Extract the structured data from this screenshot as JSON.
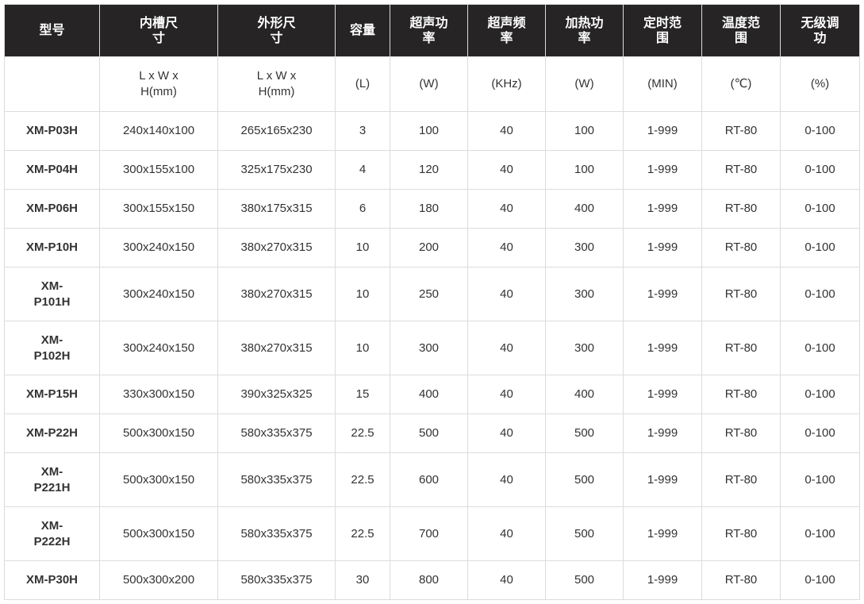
{
  "headers": [
    "型号",
    "内槽尺寸",
    "外形尺寸",
    "容量",
    "超声功率",
    "超声频率",
    "加热功率",
    "定时范围",
    "温度范围",
    "无级调功"
  ],
  "units": [
    "",
    "L x W x H(mm)",
    "L x W x H(mm)",
    "(L)",
    "(W)",
    "(KHz)",
    "(W)",
    "(MIN)",
    "(℃)",
    "(%)"
  ],
  "rows": [
    [
      "XM-P03H",
      "240x140x100",
      "265x165x230",
      "3",
      "100",
      "40",
      "100",
      "1-999",
      "RT-80",
      "0-100"
    ],
    [
      "XM-P04H",
      "300x155x100",
      "325x175x230",
      "4",
      "120",
      "40",
      "100",
      "1-999",
      "RT-80",
      "0-100"
    ],
    [
      "XM-P06H",
      "300x155x150",
      "380x175x315",
      "6",
      "180",
      "40",
      "400",
      "1-999",
      "RT-80",
      "0-100"
    ],
    [
      "XM-P10H",
      "300x240x150",
      "380x270x315",
      "10",
      "200",
      "40",
      "300",
      "1-999",
      "RT-80",
      "0-100"
    ],
    [
      "XM-P101H",
      "300x240x150",
      "380x270x315",
      "10",
      "250",
      "40",
      "300",
      "1-999",
      "RT-80",
      "0-100"
    ],
    [
      "XM-P102H",
      "300x240x150",
      "380x270x315",
      "10",
      "300",
      "40",
      "300",
      "1-999",
      "RT-80",
      "0-100"
    ],
    [
      "XM-P15H",
      "330x300x150",
      "390x325x325",
      "15",
      "400",
      "40",
      "400",
      "1-999",
      "RT-80",
      "0-100"
    ],
    [
      "XM-P22H",
      "500x300x150",
      "580x335x375",
      "22.5",
      "500",
      "40",
      "500",
      "1-999",
      "RT-80",
      "0-100"
    ],
    [
      "XM-P221H",
      "500x300x150",
      "580x335x375",
      "22.5",
      "600",
      "40",
      "500",
      "1-999",
      "RT-80",
      "0-100"
    ],
    [
      "XM-P222H",
      "500x300x150",
      "580x335x375",
      "22.5",
      "700",
      "40",
      "500",
      "1-999",
      "RT-80",
      "0-100"
    ],
    [
      "XM-P30H",
      "500x300x200",
      "580x335x375",
      "30",
      "800",
      "40",
      "500",
      "1-999",
      "RT-80",
      "0-100"
    ]
  ]
}
